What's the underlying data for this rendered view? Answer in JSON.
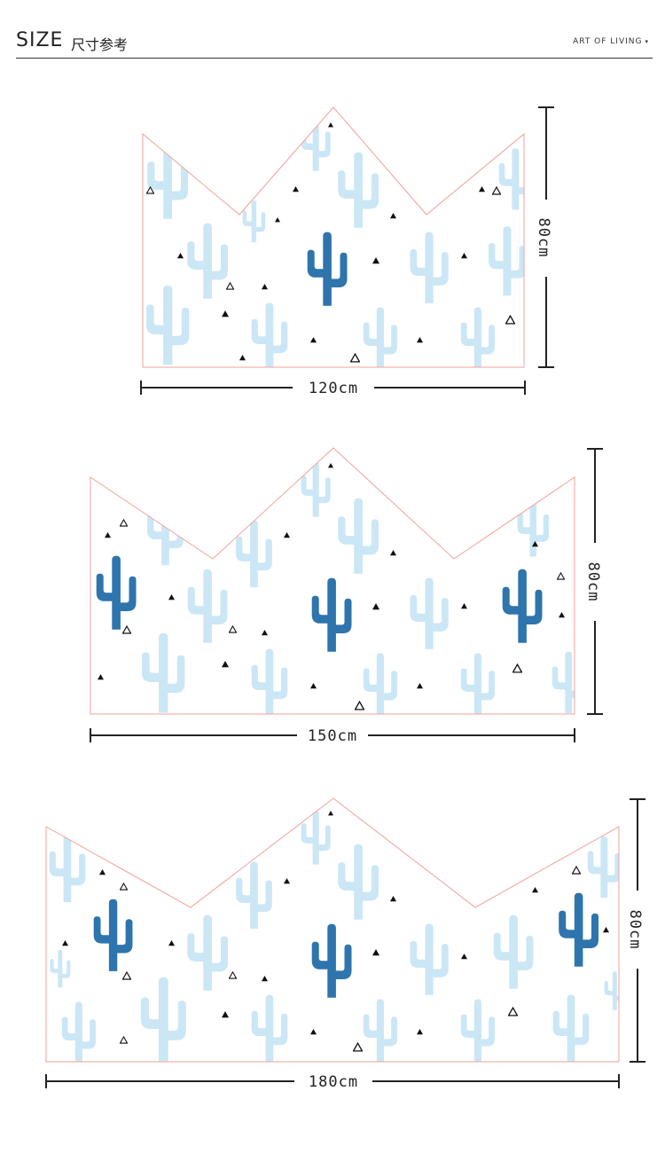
{
  "header": {
    "title": "SIZE",
    "title_cn": "尺寸参考",
    "brand": "ART OF LIVING",
    "brand_caret": "▾"
  },
  "colors": {
    "outline": "#f2a099",
    "cactus_light": "#cbe7f6",
    "cactus_dark": "#2e74ad",
    "triangle": "#111111",
    "dimension_line": "#222222"
  },
  "panels": [
    {
      "width_label": "120cm",
      "height_label": "80cm"
    },
    {
      "width_label": "150cm",
      "height_label": "80cm"
    },
    {
      "width_label": "180cm",
      "height_label": "80cm"
    }
  ]
}
